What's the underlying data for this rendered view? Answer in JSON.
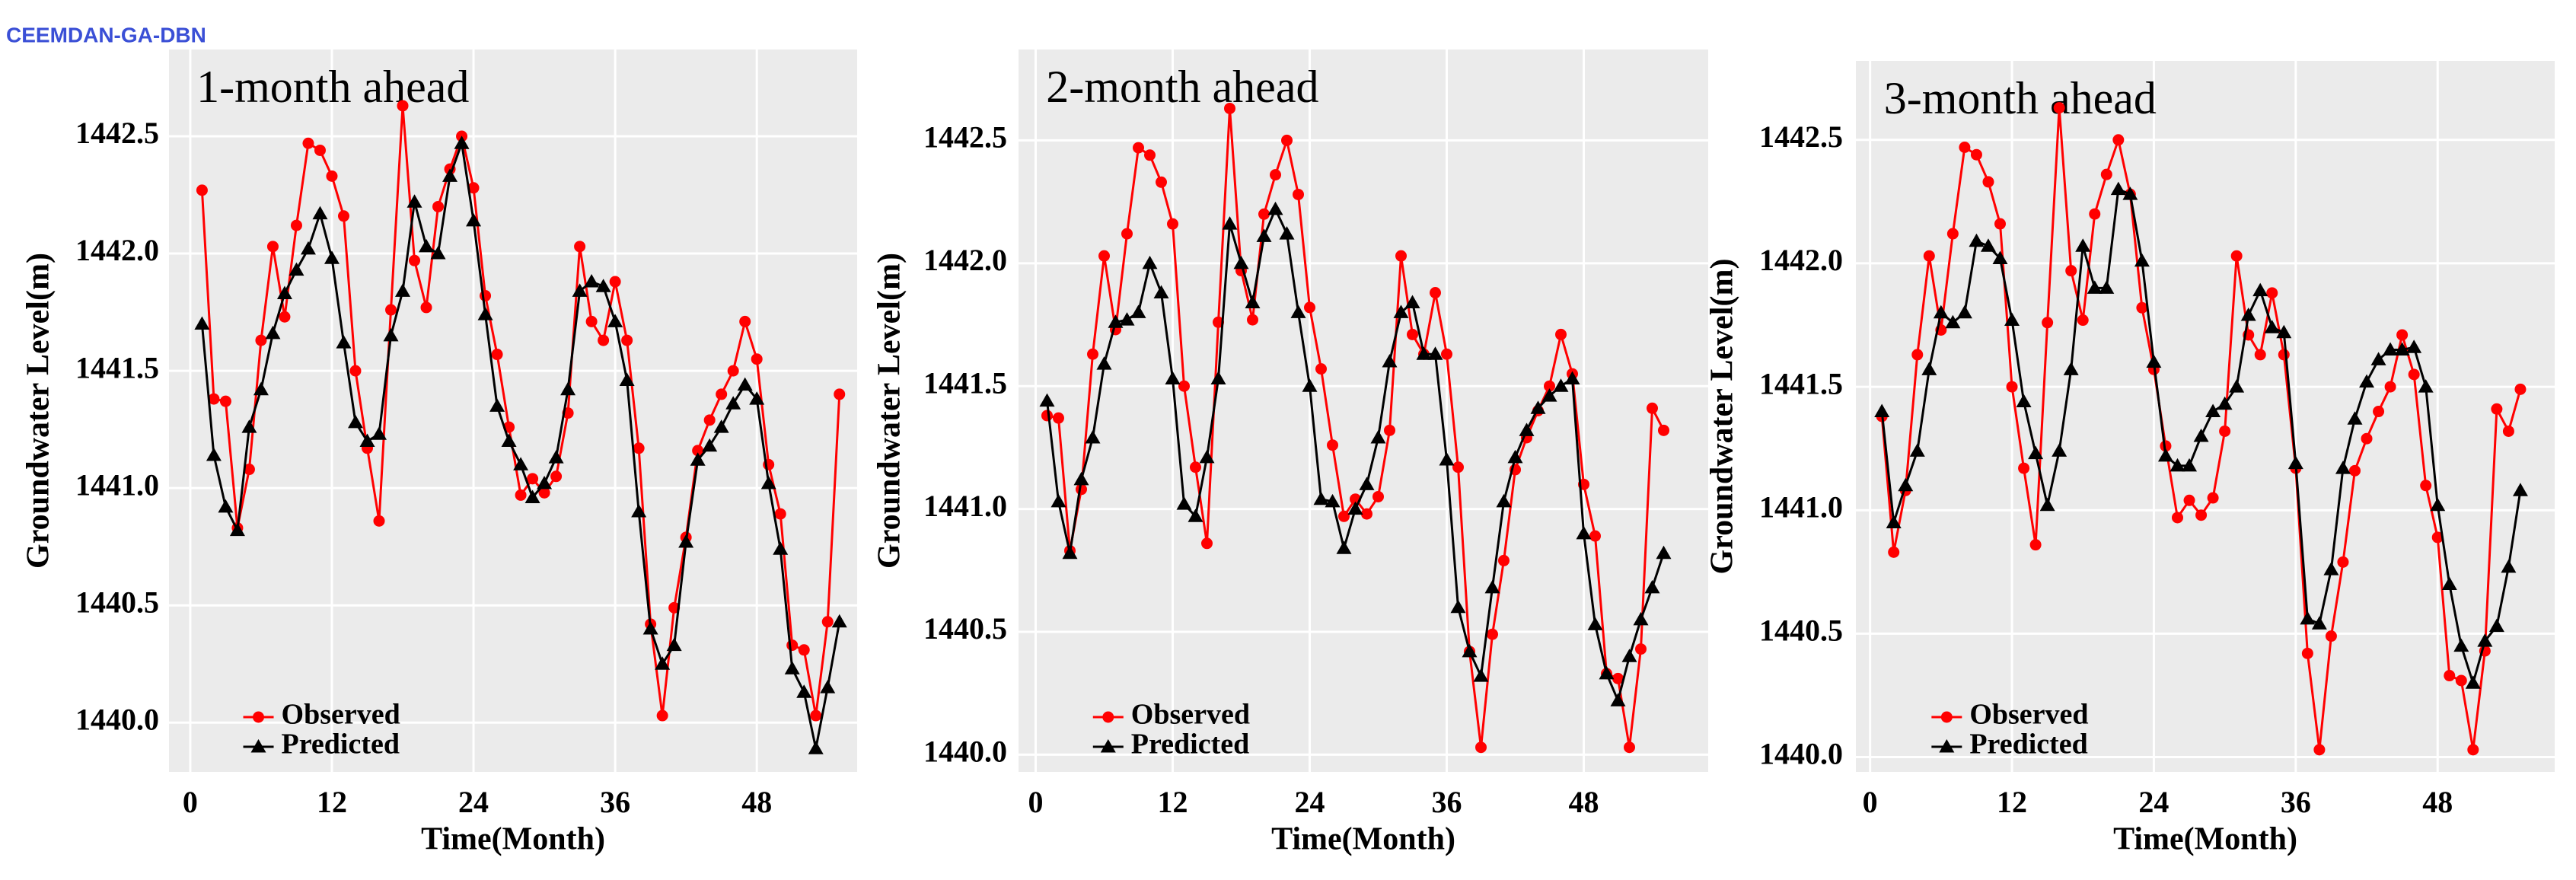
{
  "page_label": "CEEMDAN-GA-DBN",
  "chart_data": [
    {
      "type": "line",
      "title": "1-month ahead",
      "xlabel": "Time(Month)",
      "ylabel": "Groundwater Level(m)",
      "x": [
        1,
        2,
        3,
        4,
        5,
        6,
        7,
        8,
        9,
        10,
        11,
        12,
        13,
        14,
        15,
        16,
        17,
        18,
        19,
        20,
        21,
        22,
        23,
        24,
        25,
        26,
        27,
        28,
        29,
        30,
        31,
        32,
        33,
        34,
        35,
        36,
        37,
        38,
        39,
        40,
        41,
        42,
        43,
        44,
        45,
        46,
        47,
        48,
        49,
        50,
        51,
        52,
        53,
        54,
        55
      ],
      "series": [
        {
          "name": "Observed",
          "color": "#ff0000",
          "marker": "circle",
          "values": [
            1442.27,
            1441.38,
            1441.37,
            1440.83,
            1441.08,
            1441.63,
            1442.03,
            1441.73,
            1442.12,
            1442.47,
            1442.44,
            1442.33,
            1442.16,
            1441.5,
            1441.17,
            1440.86,
            1441.76,
            1442.63,
            1441.97,
            1441.77,
            1442.2,
            1442.36,
            1442.5,
            1442.28,
            1441.82,
            1441.57,
            1441.26,
            1440.97,
            1441.04,
            1440.98,
            1441.05,
            1441.32,
            1442.03,
            1441.71,
            1441.63,
            1441.88,
            1441.63,
            1441.17,
            1440.42,
            1440.03,
            1440.49,
            1440.79,
            1441.16,
            1441.29,
            1441.4,
            1441.5,
            1441.71,
            1441.55,
            1441.1,
            1440.89,
            1440.33,
            1440.31,
            1440.03,
            1440.43,
            1441.4
          ]
        },
        {
          "name": "Predicted",
          "color": "#000000",
          "marker": "triangle",
          "values": [
            1441.7,
            1441.14,
            1440.92,
            1440.82,
            1441.26,
            1441.42,
            1441.66,
            1441.83,
            1441.93,
            1442.02,
            1442.17,
            1441.98,
            1441.62,
            1441.28,
            1441.2,
            1441.23,
            1441.65,
            1441.84,
            1442.22,
            1442.03,
            1442.0,
            1442.33,
            1442.47,
            1442.14,
            1441.74,
            1441.35,
            1441.2,
            1441.1,
            1440.96,
            1441.02,
            1441.13,
            1441.42,
            1441.84,
            1441.88,
            1441.86,
            1441.71,
            1441.46,
            1440.9,
            1440.4,
            1440.25,
            1440.33,
            1440.77,
            1441.12,
            1441.18,
            1441.26,
            1441.36,
            1441.44,
            1441.38,
            1441.02,
            1440.74,
            1440.23,
            1440.13,
            1439.89,
            1440.15,
            1440.43
          ]
        }
      ],
      "xlim": [
        -1.8,
        56.5
      ],
      "ylim": [
        1439.79,
        1442.87
      ],
      "xticks": [
        0,
        12,
        24,
        36,
        48
      ],
      "yticks": [
        {
          "value": 1440,
          "label": "1440.0"
        },
        1440.5,
        {
          "value": 1441,
          "label": "1441.0"
        },
        1441.5,
        {
          "value": 1442,
          "label": "1442.0"
        },
        1442.5
      ],
      "grid": true,
      "legend": "bottom-left"
    },
    {
      "type": "line",
      "title": "2-month ahead",
      "xlabel": "Time(Month)",
      "ylabel": "Groundwater Level(m)",
      "x": [
        1,
        2,
        3,
        4,
        5,
        6,
        7,
        8,
        9,
        10,
        11,
        12,
        13,
        14,
        15,
        16,
        17,
        18,
        19,
        20,
        21,
        22,
        23,
        24,
        25,
        26,
        27,
        28,
        29,
        30,
        31,
        32,
        33,
        34,
        35,
        36,
        37,
        38,
        39,
        40,
        41,
        42,
        43,
        44,
        45,
        46,
        47,
        48,
        49,
        50,
        51,
        52,
        53,
        54,
        55
      ],
      "series": [
        {
          "name": "Observed",
          "color": "#ff0000",
          "marker": "circle",
          "values": [
            1441.38,
            1441.37,
            1440.83,
            1441.08,
            1441.63,
            1442.03,
            1441.73,
            1442.12,
            1442.47,
            1442.44,
            1442.33,
            1442.16,
            1441.5,
            1441.17,
            1440.86,
            1441.76,
            1442.63,
            1441.97,
            1441.77,
            1442.2,
            1442.36,
            1442.5,
            1442.28,
            1441.82,
            1441.57,
            1441.26,
            1440.97,
            1441.04,
            1440.98,
            1441.05,
            1441.32,
            1442.03,
            1441.71,
            1441.63,
            1441.88,
            1441.63,
            1441.17,
            1440.42,
            1440.03,
            1440.49,
            1440.79,
            1441.16,
            1441.29,
            1441.4,
            1441.5,
            1441.71,
            1441.55,
            1441.1,
            1440.89,
            1440.33,
            1440.31,
            1440.03,
            1440.43,
            1441.41,
            1441.32
          ]
        },
        {
          "name": "Predicted",
          "color": "#000000",
          "marker": "triangle",
          "values": [
            1441.44,
            1441.03,
            1440.82,
            1441.12,
            1441.29,
            1441.59,
            1441.76,
            1441.77,
            1441.8,
            1442.0,
            1441.88,
            1441.53,
            1441.02,
            1440.97,
            1441.21,
            1441.53,
            1442.16,
            1442.0,
            1441.84,
            1442.11,
            1442.22,
            1442.12,
            1441.8,
            1441.5,
            1441.04,
            1441.03,
            1440.84,
            1441.0,
            1441.1,
            1441.29,
            1441.6,
            1441.8,
            1441.84,
            1441.63,
            1441.63,
            1441.2,
            1440.6,
            1440.42,
            1440.32,
            1440.68,
            1441.03,
            1441.21,
            1441.32,
            1441.41,
            1441.46,
            1441.5,
            1441.53,
            1440.9,
            1440.53,
            1440.33,
            1440.22,
            1440.4,
            1440.55,
            1440.68,
            1440.82
          ]
        }
      ],
      "xlim": [
        -1.5,
        58.9
      ],
      "ylim": [
        1439.93,
        1442.87
      ],
      "xticks": [
        0,
        12,
        24,
        36,
        48
      ],
      "yticks": [
        {
          "value": 1440,
          "label": "1440.0"
        },
        1440.5,
        {
          "value": 1441,
          "label": "1441.0"
        },
        1441.5,
        {
          "value": 1442,
          "label": "1442.0"
        },
        1442.5
      ],
      "grid": true,
      "legend": "bottom-left"
    },
    {
      "type": "line",
      "title": "3-month ahead",
      "xlabel": "Time(Month)",
      "ylabel": "Groundwater Level(m)",
      "x": [
        1,
        2,
        3,
        4,
        5,
        6,
        7,
        8,
        9,
        10,
        11,
        12,
        13,
        14,
        15,
        16,
        17,
        18,
        19,
        20,
        21,
        22,
        23,
        24,
        25,
        26,
        27,
        28,
        29,
        30,
        31,
        32,
        33,
        34,
        35,
        36,
        37,
        38,
        39,
        40,
        41,
        42,
        43,
        44,
        45,
        46,
        47,
        48,
        49,
        50,
        51,
        52,
        53,
        54,
        55
      ],
      "series": [
        {
          "name": "Observed",
          "color": "#ff0000",
          "marker": "circle",
          "values": [
            1441.38,
            1440.83,
            1441.08,
            1441.63,
            1442.03,
            1441.73,
            1442.12,
            1442.47,
            1442.44,
            1442.33,
            1442.16,
            1441.5,
            1441.17,
            1440.86,
            1441.76,
            1442.63,
            1441.97,
            1441.77,
            1442.2,
            1442.36,
            1442.5,
            1442.28,
            1441.82,
            1441.57,
            1441.26,
            1440.97,
            1441.04,
            1440.98,
            1441.05,
            1441.32,
            1442.03,
            1441.71,
            1441.63,
            1441.88,
            1441.63,
            1441.17,
            1440.42,
            1440.03,
            1440.49,
            1440.79,
            1441.16,
            1441.29,
            1441.4,
            1441.5,
            1441.71,
            1441.55,
            1441.1,
            1440.89,
            1440.33,
            1440.31,
            1440.03,
            1440.43,
            1441.41,
            1441.32,
            1441.49
          ]
        },
        {
          "name": "Predicted",
          "color": "#000000",
          "marker": "triangle",
          "values": [
            1441.4,
            1440.95,
            1441.1,
            1441.24,
            1441.57,
            1441.8,
            1441.76,
            1441.8,
            1442.09,
            1442.07,
            1442.02,
            1441.77,
            1441.44,
            1441.23,
            1441.02,
            1441.24,
            1441.57,
            1442.07,
            1441.9,
            1441.9,
            1442.3,
            1442.28,
            1442.01,
            1441.6,
            1441.22,
            1441.18,
            1441.18,
            1441.3,
            1441.4,
            1441.43,
            1441.5,
            1441.79,
            1441.89,
            1441.74,
            1441.72,
            1441.19,
            1440.56,
            1440.54,
            1440.76,
            1441.17,
            1441.37,
            1441.52,
            1441.61,
            1441.65,
            1441.65,
            1441.66,
            1441.5,
            1441.02,
            1440.7,
            1440.45,
            1440.3,
            1440.47,
            1440.53,
            1440.77,
            1441.08
          ]
        }
      ],
      "xlim": [
        -1.2,
        57.9
      ],
      "ylim": [
        1439.94,
        1442.82
      ],
      "xticks": [
        0,
        12,
        24,
        36,
        48
      ],
      "yticks": [
        {
          "value": 1440,
          "label": "1440.0"
        },
        1440.5,
        {
          "value": 1441,
          "label": "1441.0"
        },
        1441.5,
        {
          "value": 1442,
          "label": "1442.0"
        },
        1442.5
      ],
      "grid": true,
      "legend": "bottom-left"
    }
  ]
}
